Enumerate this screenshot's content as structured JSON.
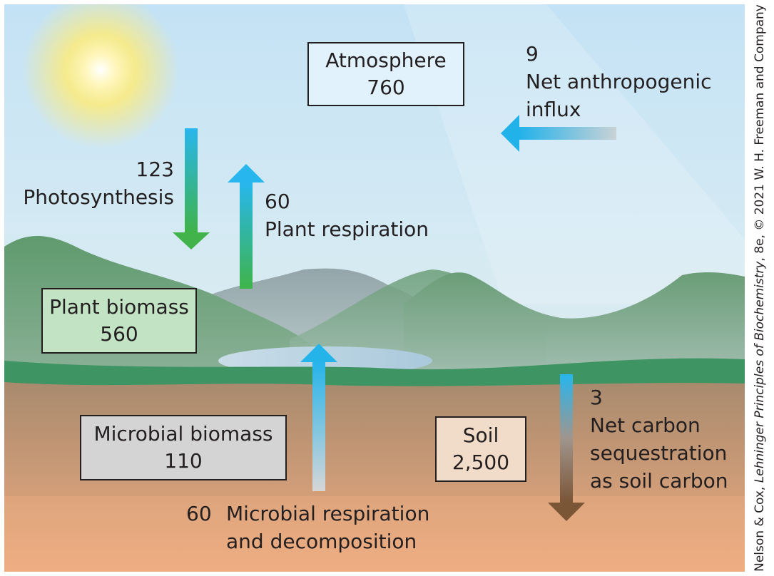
{
  "credit": {
    "prefix": "Nelson & Cox, ",
    "book": "Lehninger Principles of Biochemistry",
    "suffix": ", 8e, © 2021 W. H. Freeman and Company"
  },
  "pools": {
    "atmosphere": {
      "name": "Atmosphere",
      "value": "760"
    },
    "plant_biomass": {
      "name": "Plant biomass",
      "value": "560"
    },
    "microbial_biomass": {
      "name": "Microbial biomass",
      "value": "110"
    },
    "soil": {
      "name": "Soil",
      "value": "2,500"
    }
  },
  "fluxes": {
    "anthropogenic": {
      "value": "9",
      "line1": "Net anthropogenic",
      "line2": "influx"
    },
    "photosynthesis": {
      "value": "123",
      "label": "Photosynthesis"
    },
    "plant_respiration": {
      "value": "60",
      "label": "Plant respiration"
    },
    "microbial_respiration": {
      "value": "60",
      "line1": "Microbial respiration",
      "line2": "and decomposition"
    },
    "sequestration": {
      "value": "3",
      "line1": "Net carbon",
      "line2": "sequestration",
      "line3": "as soil carbon"
    }
  },
  "colors": {
    "sky_top": "#c6e3f4",
    "sky_bottom": "#d9eaf0",
    "mountain": "#78a385",
    "soil_top": "#a88a6e",
    "soil_bottom": "#eeac82",
    "arrow_blue": "#2ab4e8",
    "arrow_green": "#3cb44b",
    "arrow_brown": "#7b5a3c",
    "atmosphere_box": "#e1f2fc",
    "plant_box": "#c3e3c5",
    "microbial_box": "#d4d4d4",
    "soil_box": "#f1dbc9"
  }
}
